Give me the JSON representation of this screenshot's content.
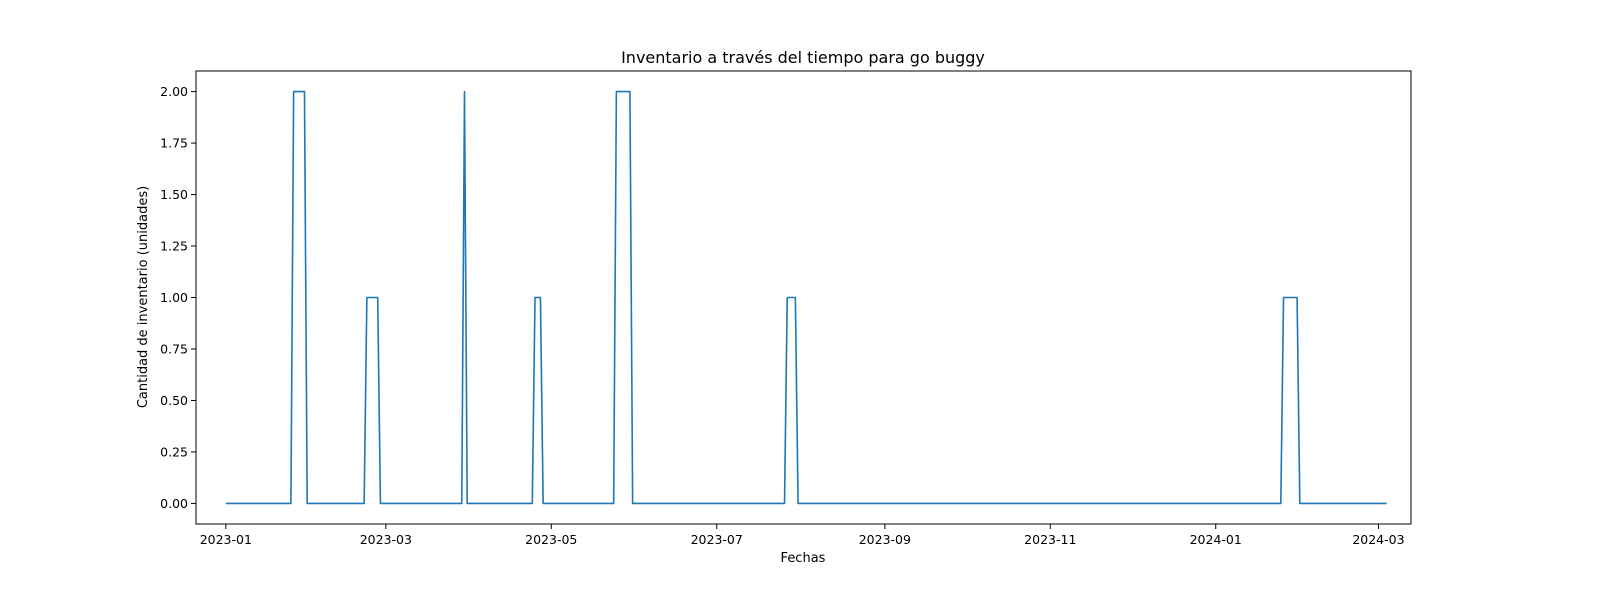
{
  "chart_data": {
    "type": "line",
    "title": "Inventario a través del tiempo para go buggy",
    "xlabel": "Fechas",
    "ylabel": "Cantidad de inventario (unidades)",
    "x_axis": "date",
    "xlim": [
      "2022-12-21",
      "2024-03-13"
    ],
    "ylim": [
      -0.1,
      2.1
    ],
    "x_ticks": [
      "2023-01-01",
      "2023-03-01",
      "2023-05-01",
      "2023-07-01",
      "2023-09-01",
      "2023-11-01",
      "2024-01-01",
      "2024-03-01"
    ],
    "x_tick_labels": [
      "2023-01",
      "2023-03",
      "2023-05",
      "2023-07",
      "2023-09",
      "2023-11",
      "2024-01",
      "2024-03"
    ],
    "y_ticks": [
      0.0,
      0.25,
      0.5,
      0.75,
      1.0,
      1.25,
      1.5,
      1.75,
      2.0
    ],
    "y_tick_labels": [
      "0.00",
      "0.25",
      "0.50",
      "0.75",
      "1.00",
      "1.25",
      "1.50",
      "1.75",
      "2.00"
    ],
    "grid": false,
    "line_color": "#1f77b4",
    "series": [
      {
        "x": [
          "2023-01-01",
          "2023-01-25",
          "2023-01-26",
          "2023-01-30",
          "2023-01-31",
          "2023-02-21",
          "2023-02-22",
          "2023-02-26",
          "2023-02-27",
          "2023-03-29",
          "2023-03-30",
          "2023-03-31",
          "2023-04-24",
          "2023-04-25",
          "2023-04-27",
          "2023-04-28",
          "2023-05-24",
          "2023-05-25",
          "2023-05-30",
          "2023-05-31",
          "2023-07-26",
          "2023-07-27",
          "2023-07-30",
          "2023-07-31",
          "2024-01-25",
          "2024-01-26",
          "2024-01-31",
          "2024-02-01",
          "2024-03-04"
        ],
        "values": [
          0,
          0,
          2,
          2,
          0,
          0,
          1,
          1,
          0,
          0,
          2,
          0,
          0,
          1,
          1,
          0,
          0,
          2,
          2,
          0,
          0,
          1,
          1,
          0,
          0,
          1,
          1,
          0,
          0
        ]
      }
    ]
  }
}
